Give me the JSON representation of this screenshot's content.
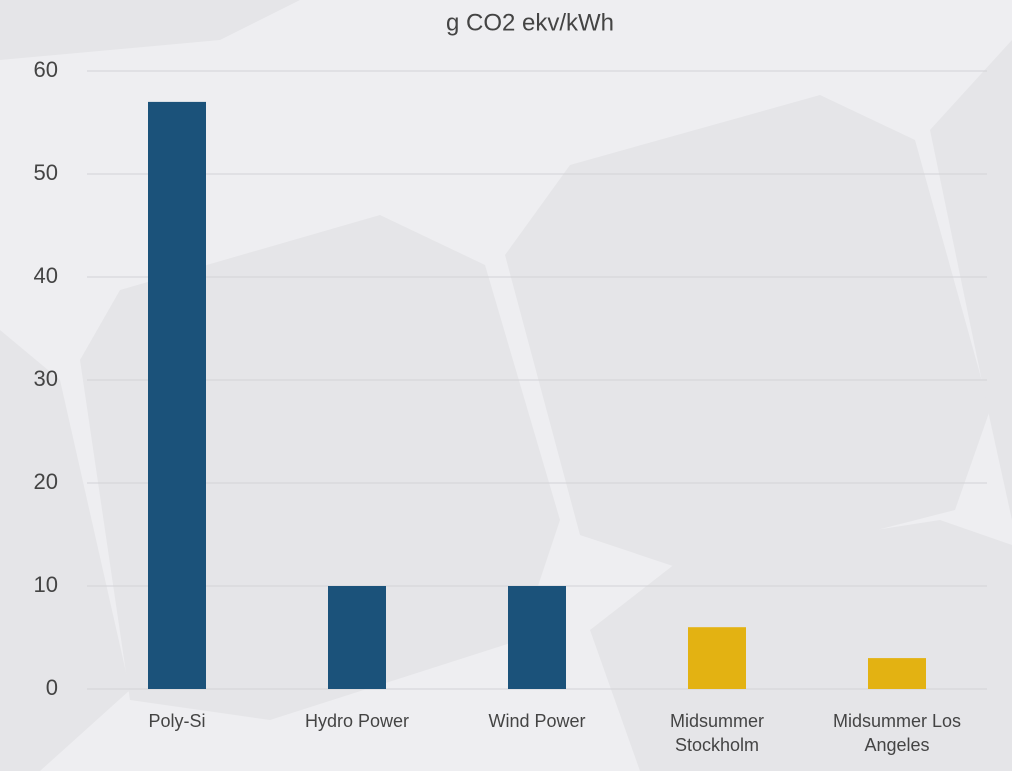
{
  "chart_data": {
    "type": "bar",
    "title": "g CO2 ekv/kWh",
    "categories": [
      "Poly-Si",
      "Hydro Power",
      "Wind Power",
      "Midsummer Stockholm",
      "Midsummer Los Angeles"
    ],
    "values": [
      57,
      10,
      10,
      6,
      3
    ],
    "colors": [
      "#1b527a",
      "#1b527a",
      "#1b527a",
      "#e3b212",
      "#e3b212"
    ],
    "ylim": [
      0,
      60
    ],
    "yticks": [
      0,
      10,
      20,
      30,
      40,
      50,
      60
    ],
    "grid": true
  }
}
